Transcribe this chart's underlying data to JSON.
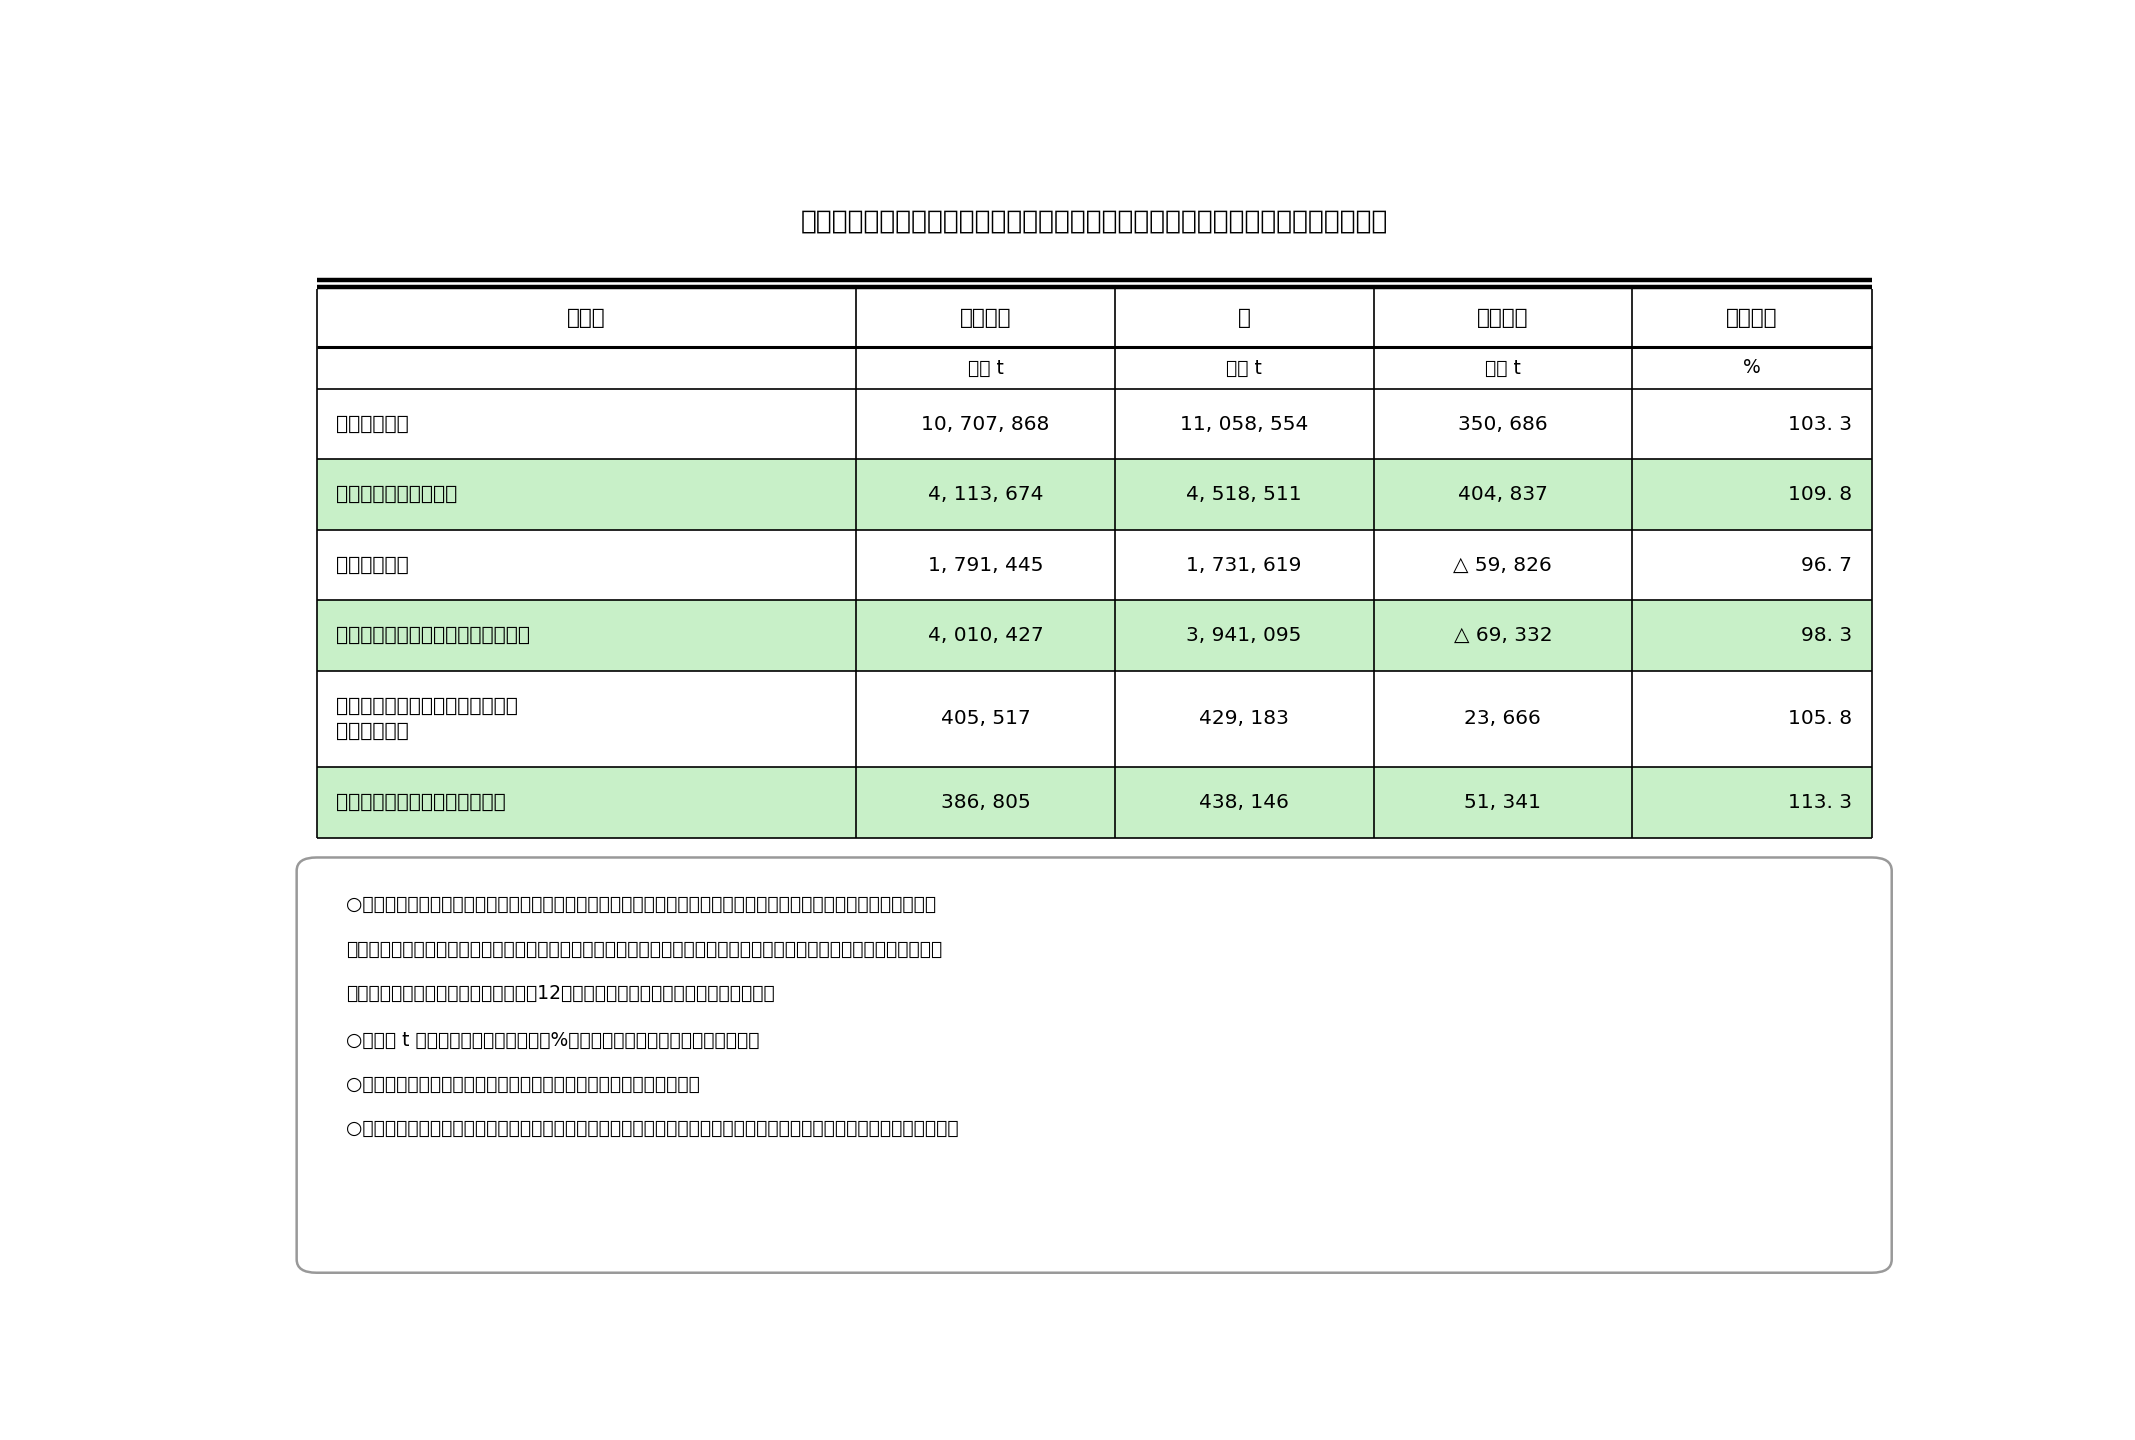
{
  "title": "表　木質バイオマスエネルギーとして利用した木材チップの由来別利用量（全国）",
  "title_fontsize": 19,
  "col_headers": [
    "区　分",
    "令和３年",
    "４",
    "対前年差",
    "対前年比"
  ],
  "sub_headers": [
    "",
    "絶乾 t",
    "絶乾 t",
    "絶乾 t",
    "%"
  ],
  "rows": [
    {
      "label": "木材チップ計",
      "values": [
        "10, 707, 868",
        "11, 058, 554",
        "350, 686",
        "103. 3"
      ],
      "green": false,
      "two_line": false
    },
    {
      "label": "　間伐材・林地残材等",
      "values": [
        "4, 113, 674",
        "4, 518, 511",
        "404, 837",
        "109. 8"
      ],
      "green": true,
      "two_line": false
    },
    {
      "label": "　製材等残材",
      "values": [
        "1, 791, 445",
        "1, 731, 619",
        "△ 59, 826",
        "96. 7"
      ],
      "green": false,
      "two_line": false
    },
    {
      "label": "　建設資材廃棄物（解体材、廃材）",
      "values": [
        "4, 010, 427",
        "3, 941, 095",
        "△ 69, 332",
        "98. 3"
      ],
      "green": true,
      "two_line": false
    },
    {
      "label": "　輸入チップ・輸入丸太を用いて\n　国内で製造",
      "values": [
        "405, 517",
        "429, 183",
        "23, 666",
        "105. 8"
      ],
      "green": false,
      "two_line": true
    },
    {
      "label": "　上記以外の木材（剪定枝等）",
      "values": [
        "386, 805",
        "438, 146",
        "51, 341",
        "113. 3"
      ],
      "green": true,
      "two_line": false
    }
  ],
  "notes_line1": "○　木質バイオマスエネルギーとは、木材チップ、木質ペレット、薪、木粉（おが粉）等の木質バイオマスの燃焼に",
  "notes_line2": "　　よって発生するエネルギーをいう。この資料は、このうちの木材チップの利用量等を取りまとめたものであり、木",
  "notes_line3": "　　材チップ以外の利用量は令和５年12月にホームページで公表を予定している。",
  "notes_line4": "○　絶乾 t とは、絶乾比重（含水率０%）に基づき算出された実重量を指す。",
  "notes_line5": "○　集計は、回答が得られた事業所の調査結果の単純積上げとした。",
  "notes_line6": "○　統計数値については、表示単位未満を四捨五入しているため、合計値と内訳が一致しない場合がある（以下同じ）。",
  "note_fontsize": 13.5,
  "bg_color": "#ffffff",
  "green_color": "#c8f0c8",
  "border_color": "#000000",
  "text_color": "#000000"
}
